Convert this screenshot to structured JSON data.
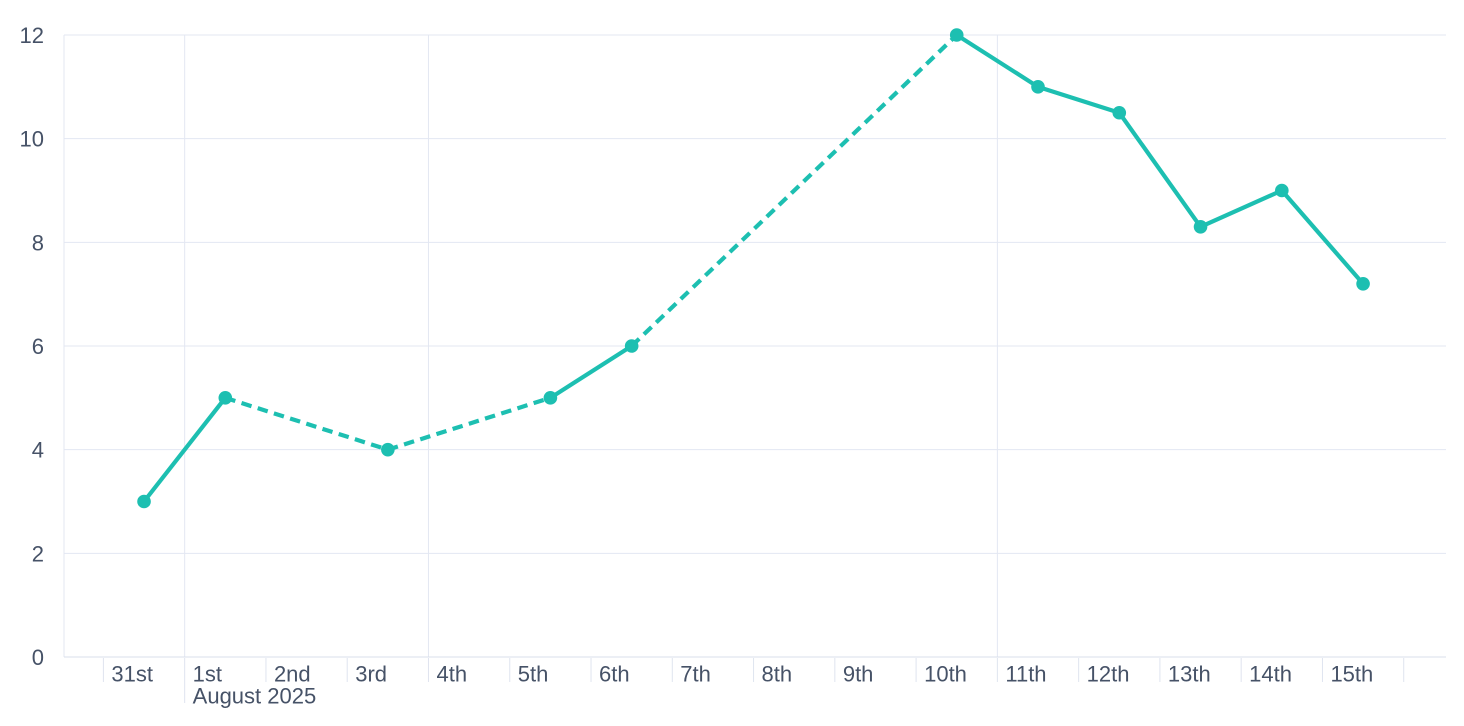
{
  "page": {
    "background": "#ffffff"
  },
  "colors": {
    "accent": "#1dbfb1",
    "grid": "#e3e7f2",
    "axis_line": "#d9dfeb",
    "tick": "#dfe4ef",
    "text": "#465267"
  },
  "chart_data": {
    "type": "line",
    "title": "",
    "legend": false,
    "grid": true,
    "x_axis": {
      "unit": "day",
      "categories": [
        "31st",
        "1st",
        "2nd",
        "3rd",
        "4th",
        "5th",
        "6th",
        "7th",
        "8th",
        "9th",
        "10th",
        "11th",
        "12th",
        "13th",
        "14th",
        "15th"
      ],
      "month_label": "August 2025",
      "month_label_under": "1st",
      "week_gridlines_at": [
        "1st",
        "4th",
        "11th"
      ]
    },
    "y_axis": {
      "min": 0,
      "max": 12,
      "ticks": [
        0,
        2,
        4,
        6,
        8,
        10,
        12
      ]
    },
    "series": [
      {
        "name": "daily-value",
        "color": "#1dbfb1",
        "marker": "circle",
        "gap_style": "dashed",
        "points": [
          {
            "date": "31st",
            "value": 3
          },
          {
            "date": "1st",
            "value": 5
          },
          {
            "date": "3rd",
            "value": 4
          },
          {
            "date": "5th",
            "value": 5
          },
          {
            "date": "6th",
            "value": 6
          },
          {
            "date": "10th",
            "value": 12
          },
          {
            "date": "11th",
            "value": 11
          },
          {
            "date": "12th",
            "value": 10.5
          },
          {
            "date": "13th",
            "value": 8.3
          },
          {
            "date": "14th",
            "value": 9
          },
          {
            "date": "15th",
            "value": 7.2
          }
        ]
      }
    ]
  }
}
